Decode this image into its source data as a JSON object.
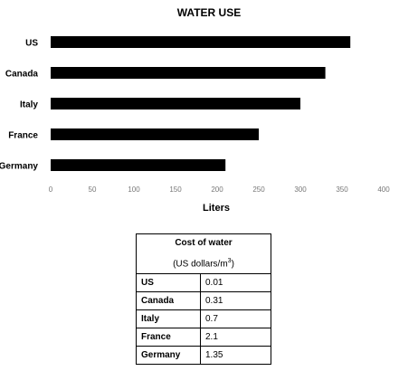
{
  "chart_data": [
    {
      "type": "bar",
      "orientation": "horizontal",
      "title": "WATER USE",
      "xlabel": "Liters",
      "ylabel": "",
      "categories": [
        "US",
        "Canada",
        "Italy",
        "France",
        "Germany"
      ],
      "values": [
        360,
        330,
        300,
        250,
        210
      ],
      "xlim": [
        0,
        400
      ],
      "ticks": [
        "0",
        "50",
        "100",
        "150",
        "200",
        "250",
        "300",
        "350",
        "400"
      ],
      "bar_color": "#000000",
      "grid": false,
      "legend": "none"
    },
    {
      "type": "table",
      "title": "Cost of water",
      "unit_prefix": "(US dollars/m",
      "unit_exponent": "3",
      "unit_suffix": ")",
      "rows": [
        {
          "category": "US",
          "value": "0.01"
        },
        {
          "category": "Canada",
          "value": "0.31"
        },
        {
          "category": "Italy",
          "value": "0.7"
        },
        {
          "category": "France",
          "value": "2.1"
        },
        {
          "category": "Germany",
          "value": "1.35"
        }
      ]
    }
  ]
}
